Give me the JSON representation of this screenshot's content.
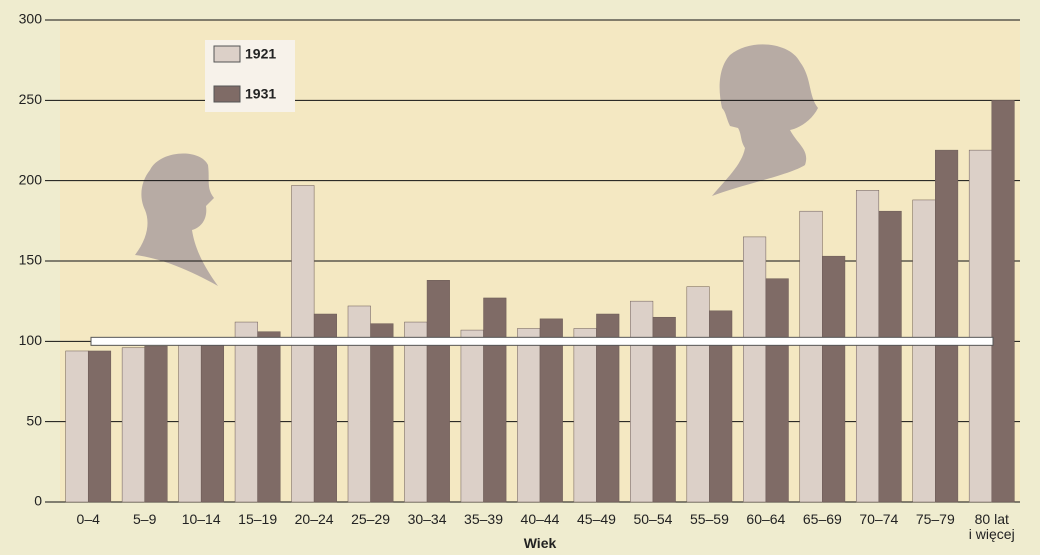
{
  "chart_data": {
    "type": "bar",
    "x_label": "Wiek",
    "categories": [
      "0–4",
      "5–9",
      "10–14",
      "15–19",
      "20–24",
      "25–29",
      "30–34",
      "35–39",
      "40–44",
      "45–49",
      "50–54",
      "55–59",
      "60–64",
      "65–69",
      "70–74",
      "75–79",
      "80 lat\ni więcej"
    ],
    "series": [
      {
        "name": "1921",
        "color": "#dcd0c8",
        "values": [
          94,
          96,
          98,
          112,
          197,
          122,
          112,
          107,
          108,
          108,
          125,
          134,
          165,
          181,
          194,
          188,
          219
        ]
      },
      {
        "name": "1931",
        "color": "#7f6b66",
        "values": [
          94,
          97,
          98,
          106,
          117,
          111,
          138,
          127,
          114,
          117,
          115,
          119,
          139,
          153,
          181,
          219,
          250
        ]
      }
    ],
    "reference_value": 100,
    "ylim": [
      0,
      300
    ],
    "yticks": [
      0,
      50,
      100,
      150,
      200,
      250,
      300
    ],
    "grid": true,
    "legend": "upper left"
  }
}
